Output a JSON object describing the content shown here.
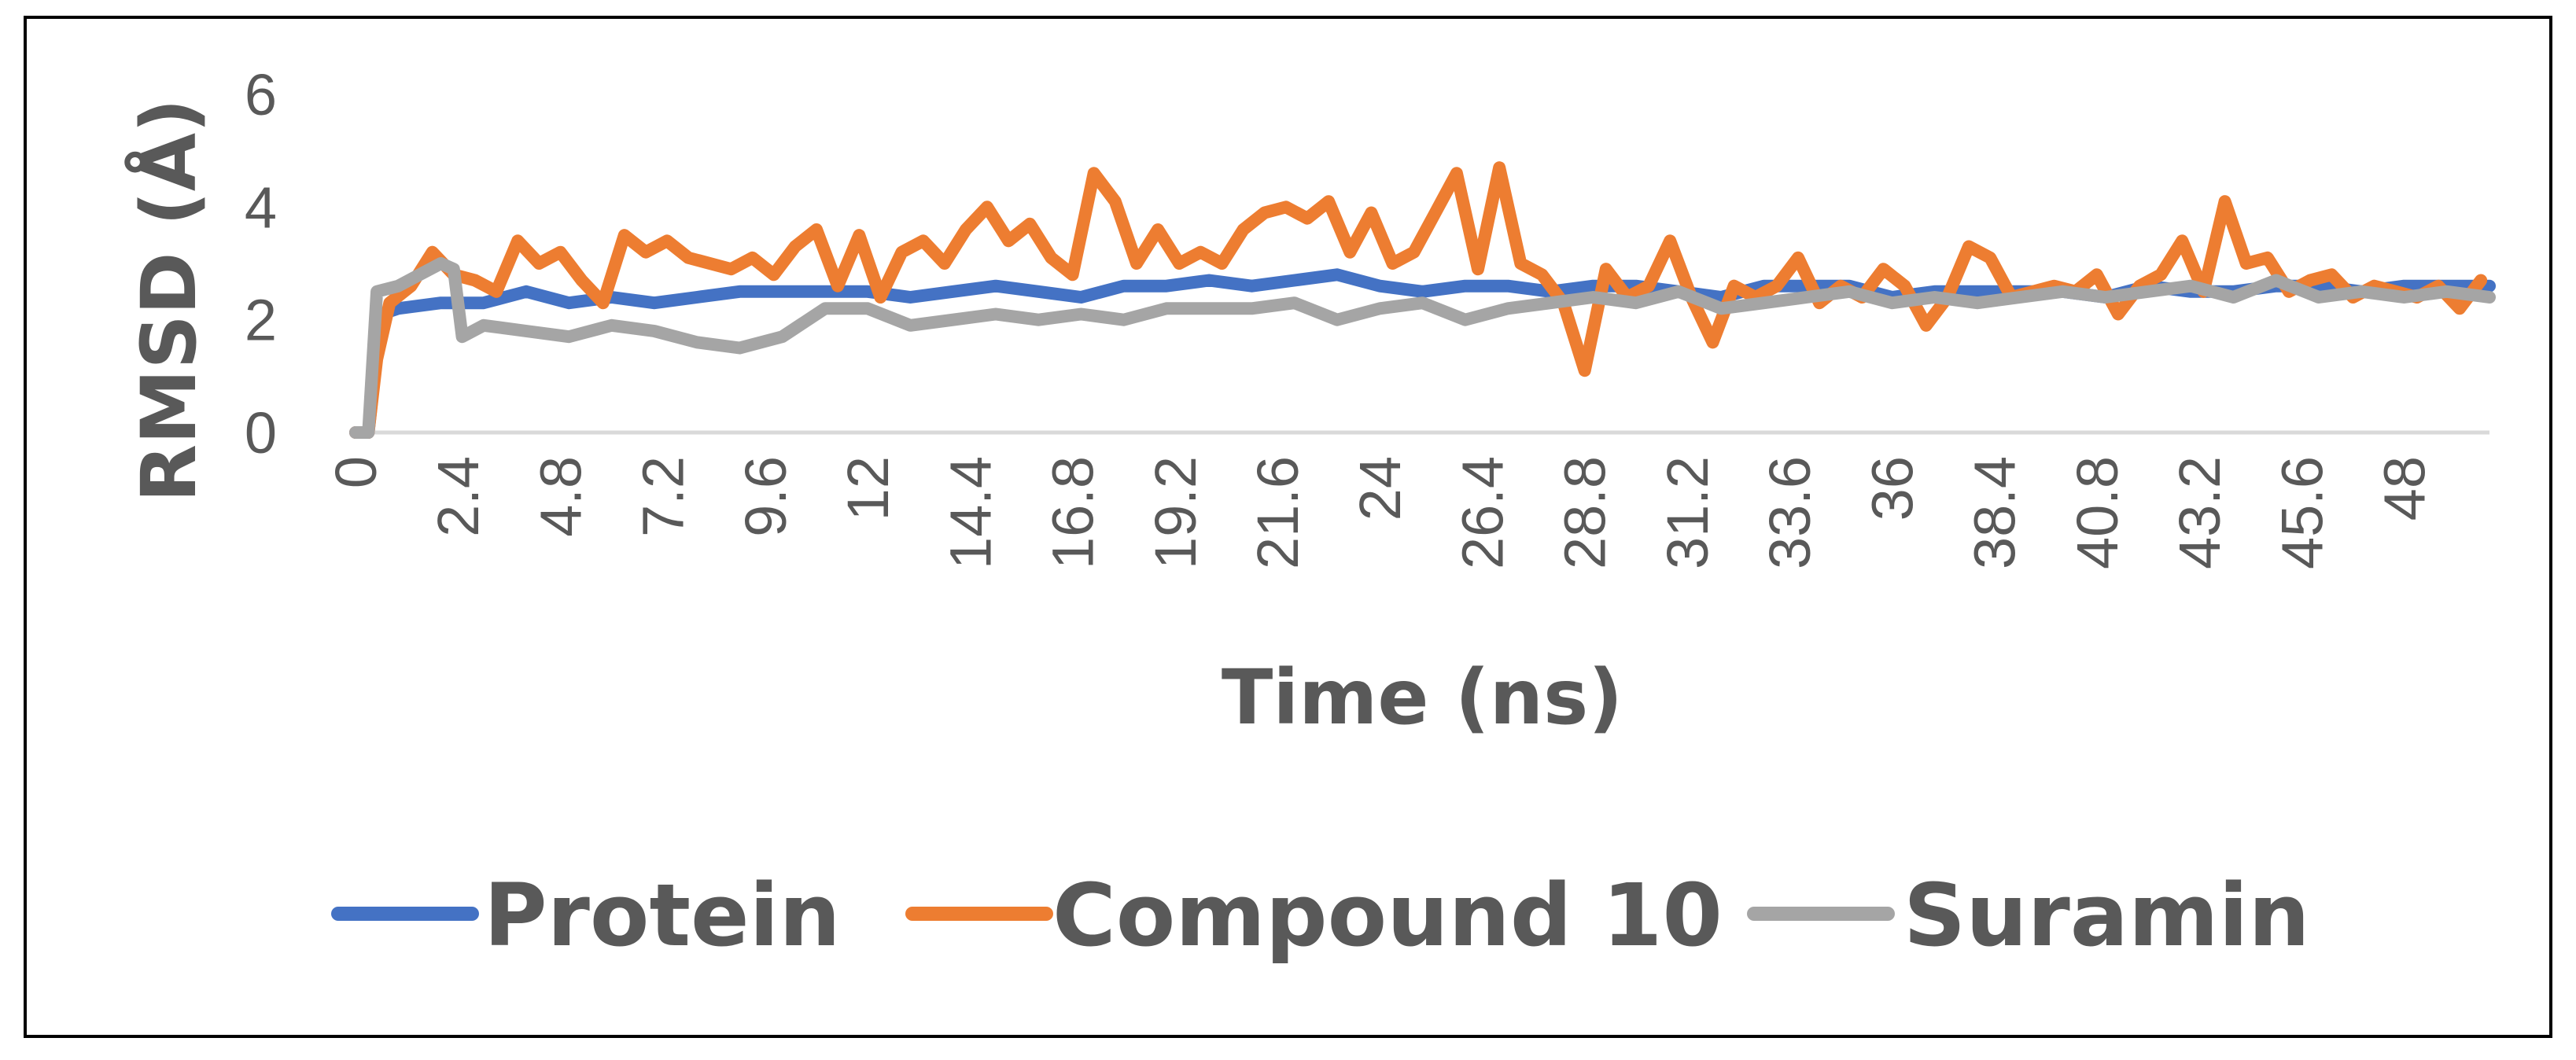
{
  "chart_data": {
    "type": "line",
    "title": "",
    "xlabel": "Time (ns)",
    "ylabel": "RMSD (Å)",
    "xlim": [
      0,
      50
    ],
    "ylim": [
      0,
      6
    ],
    "yticks": [
      "0",
      "2",
      "4",
      "6"
    ],
    "xtick_labels": [
      "0",
      "2.4",
      "4.8",
      "7.2",
      "9.6",
      "12",
      "14.4",
      "16.8",
      "19.2",
      "21.6",
      "24",
      "26.4",
      "28.8",
      "31.2",
      "33.6",
      "36",
      "38.4",
      "40.8",
      "43.2",
      "45.6",
      "48"
    ],
    "grid": "none",
    "legend_position": "bottom",
    "series": [
      {
        "name": "Protein",
        "color": "#4472C4",
        "x": [
          0,
          0.3,
          0.6,
          1,
          2,
          3,
          4,
          5,
          6,
          7,
          8,
          9,
          10,
          11,
          12,
          13,
          14,
          15,
          16,
          17,
          18,
          19,
          20,
          21,
          22,
          23,
          24,
          25,
          26,
          27,
          28,
          29,
          30,
          31,
          32,
          33,
          34,
          35,
          36,
          37,
          38,
          39,
          40,
          41,
          42,
          43,
          44,
          45,
          46,
          47,
          48,
          49,
          50
        ],
        "y": [
          0,
          0,
          2.1,
          2.2,
          2.3,
          2.3,
          2.5,
          2.3,
          2.4,
          2.3,
          2.4,
          2.5,
          2.5,
          2.5,
          2.5,
          2.4,
          2.5,
          2.6,
          2.5,
          2.4,
          2.6,
          2.6,
          2.7,
          2.6,
          2.7,
          2.8,
          2.6,
          2.5,
          2.6,
          2.6,
          2.5,
          2.6,
          2.6,
          2.5,
          2.4,
          2.6,
          2.6,
          2.6,
          2.4,
          2.5,
          2.5,
          2.5,
          2.5,
          2.4,
          2.6,
          2.5,
          2.5,
          2.6,
          2.6,
          2.5,
          2.6,
          2.6,
          2.6
        ]
      },
      {
        "name": "Compound 10",
        "color": "#ED7D31",
        "x": [
          0,
          0.3,
          0.5,
          0.8,
          1.3,
          1.8,
          2.3,
          2.8,
          3.3,
          3.8,
          4.3,
          4.8,
          5.3,
          5.8,
          6.3,
          6.8,
          7.3,
          7.8,
          8.3,
          8.8,
          9.3,
          9.8,
          10.3,
          10.8,
          11.3,
          11.8,
          12.3,
          12.8,
          13.3,
          13.8,
          14.3,
          14.8,
          15.3,
          15.8,
          16.3,
          16.8,
          17.3,
          17.8,
          18.3,
          18.8,
          19.3,
          19.8,
          20.3,
          20.8,
          21.3,
          21.8,
          22.3,
          22.8,
          23.3,
          23.8,
          24.3,
          24.8,
          25.3,
          25.8,
          26.3,
          26.8,
          27.3,
          27.8,
          28.3,
          28.8,
          29.3,
          29.8,
          30.3,
          30.8,
          31.3,
          31.8,
          32.3,
          32.8,
          33.3,
          33.8,
          34.3,
          34.8,
          35.3,
          35.8,
          36.3,
          36.8,
          37.3,
          37.8,
          38.3,
          38.8,
          39.3,
          39.8,
          40.3,
          40.8,
          41.3,
          41.8,
          42.3,
          42.8,
          43.3,
          43.8,
          44.3,
          44.8,
          45.3,
          45.8,
          46.3,
          46.8,
          47.3,
          47.8,
          48.3,
          48.8,
          49.3,
          49.8
        ],
        "y": [
          0,
          0,
          1.3,
          2.3,
          2.6,
          3.2,
          2.8,
          2.7,
          2.5,
          3.4,
          3.0,
          3.2,
          2.7,
          2.3,
          3.5,
          3.2,
          3.4,
          3.1,
          3.0,
          2.9,
          3.1,
          2.8,
          3.3,
          3.6,
          2.6,
          3.5,
          2.4,
          3.2,
          3.4,
          3.0,
          3.6,
          4.0,
          3.4,
          3.7,
          3.1,
          2.8,
          4.6,
          4.1,
          3.0,
          3.6,
          3.0,
          3.2,
          3.0,
          3.6,
          3.9,
          4.0,
          3.8,
          4.1,
          3.2,
          3.9,
          3.0,
          3.2,
          3.9,
          4.6,
          2.9,
          4.7,
          3.0,
          2.8,
          2.3,
          1.1,
          2.9,
          2.4,
          2.6,
          3.4,
          2.4,
          1.6,
          2.6,
          2.4,
          2.6,
          3.1,
          2.3,
          2.6,
          2.4,
          2.9,
          2.6,
          1.9,
          2.4,
          3.3,
          3.1,
          2.4,
          2.5,
          2.6,
          2.5,
          2.8,
          2.1,
          2.6,
          2.8,
          3.4,
          2.5,
          4.1,
          3.0,
          3.1,
          2.5,
          2.7,
          2.8,
          2.4,
          2.6,
          2.5,
          2.4,
          2.6,
          2.2,
          2.7
        ]
      },
      {
        "name": "Suramin",
        "color": "#A5A5A5",
        "x": [
          0,
          0.3,
          0.5,
          1,
          1.5,
          2,
          2.3,
          2.5,
          3,
          4,
          5,
          6,
          7,
          8,
          9,
          10,
          11,
          12,
          13,
          14,
          15,
          16,
          17,
          18,
          19,
          20,
          21,
          22,
          23,
          24,
          25,
          26,
          27,
          28,
          29,
          30,
          31,
          32,
          33,
          34,
          35,
          36,
          37,
          38,
          39,
          40,
          41,
          42,
          43,
          44,
          45,
          46,
          47,
          48,
          49,
          50
        ],
        "y": [
          0,
          0,
          2.5,
          2.6,
          2.8,
          3.0,
          2.9,
          1.7,
          1.9,
          1.8,
          1.7,
          1.9,
          1.8,
          1.6,
          1.5,
          1.7,
          2.2,
          2.2,
          1.9,
          2.0,
          2.1,
          2.0,
          2.1,
          2.0,
          2.2,
          2.2,
          2.2,
          2.3,
          2.0,
          2.2,
          2.3,
          2.0,
          2.2,
          2.3,
          2.4,
          2.3,
          2.5,
          2.2,
          2.3,
          2.4,
          2.5,
          2.3,
          2.4,
          2.3,
          2.4,
          2.5,
          2.4,
          2.5,
          2.6,
          2.4,
          2.7,
          2.4,
          2.5,
          2.4,
          2.5,
          2.4
        ]
      }
    ]
  }
}
